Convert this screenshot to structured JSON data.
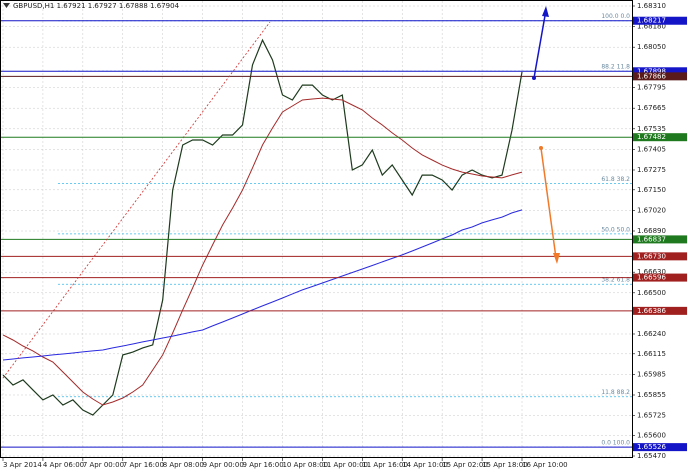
{
  "chart_data": {
    "type": "line",
    "title": "GBPUSD,H1  1.67921 1.67927 1.67888 1.67904",
    "categories": [
      "3 Apr 2014",
      null,
      null,
      null,
      "4 Apr 06:00",
      null,
      null,
      null,
      "7 Apr 00:00",
      null,
      null,
      null,
      "7 Apr 16:00",
      null,
      null,
      null,
      "8 Apr 08:00",
      null,
      null,
      null,
      "9 Apr 00:00",
      null,
      null,
      null,
      "9 Apr 16:00",
      null,
      null,
      null,
      "10 Apr 08:00",
      null,
      null,
      null,
      "11 Apr 00:00",
      null,
      null,
      null,
      "11 Apr 16:00",
      null,
      null,
      null,
      "14 Apr 10:00",
      null,
      null,
      null,
      "15 Apr 02:00",
      null,
      null,
      null,
      "15 Apr 18:00",
      null,
      null,
      null,
      "16 Apr 10:00"
    ],
    "series": [
      {
        "color": "#1e3a1e",
        "values": [
          1.65981,
          1.65918,
          1.6595,
          1.65887,
          1.65824,
          1.65855,
          1.65792,
          1.65824,
          1.6576,
          1.65729,
          1.65792,
          1.65855,
          1.66108,
          1.66126,
          1.66152,
          1.66171,
          1.66455,
          1.67149,
          1.67433,
          1.67464,
          1.67464,
          1.67433,
          1.67496,
          1.67496,
          1.67559,
          1.67938,
          1.68095,
          1.67969,
          1.67748,
          1.67717,
          1.67811,
          1.67811,
          1.67748,
          1.67717,
          1.67748,
          1.67275,
          1.67307,
          1.67401,
          1.67243,
          1.67307,
          1.67212,
          1.67117,
          1.67243,
          1.67243,
          1.67212,
          1.67149,
          1.67243,
          1.67275,
          1.67243,
          1.67225,
          1.67243,
          1.67527,
          1.67894
        ]
      },
      {
        "color": "#a52a2a",
        "values": [
          1.66234,
          1.66202,
          1.66164,
          1.66133,
          1.66095,
          1.66063,
          1.66,
          1.65937,
          1.65874,
          1.6583,
          1.65792,
          1.65811,
          1.65836,
          1.65874,
          1.65918,
          1.66013,
          1.66108,
          1.66246,
          1.66392,
          1.6653,
          1.66675,
          1.66802,
          1.66928,
          1.67035,
          1.67149,
          1.67288,
          1.67433,
          1.6754,
          1.67641,
          1.67679,
          1.67717,
          1.67723,
          1.67729,
          1.67723,
          1.67717,
          1.67685,
          1.67654,
          1.67603,
          1.67559,
          1.67509,
          1.67464,
          1.67414,
          1.6737,
          1.67338,
          1.67306,
          1.67281,
          1.67262,
          1.6725,
          1.67237,
          1.67231,
          1.67225,
          1.67244,
          1.67262
        ]
      },
      {
        "color": "#2a2ae0",
        "values": [
          1.66076,
          1.66082,
          1.66089,
          1.66095,
          1.66101,
          1.66108,
          1.66114,
          1.6612,
          1.66127,
          1.66133,
          1.66139,
          1.66152,
          1.66164,
          1.66177,
          1.6619,
          1.66202,
          1.66215,
          1.66227,
          1.6624,
          1.66253,
          1.66265,
          1.66291,
          1.66316,
          1.66341,
          1.66366,
          1.66392,
          1.66417,
          1.66442,
          1.66467,
          1.66493,
          1.66518,
          1.6654,
          1.66562,
          1.66584,
          1.66606,
          1.66628,
          1.6665,
          1.66672,
          1.66695,
          1.66717,
          1.66739,
          1.66764,
          1.66789,
          1.66814,
          1.6684,
          1.66865,
          1.66896,
          1.66915,
          1.66941,
          1.6696,
          1.66978,
          1.67004,
          1.67023
        ]
      }
    ],
    "ylim": [
      1.6547,
      1.6831
    ],
    "yticks": [
      {
        "value": 1.6831,
        "label": "1.68310"
      },
      {
        "value": 1.6818,
        "label": "1.68180"
      },
      {
        "value": 1.6805,
        "label": "1.68050"
      },
      {
        "value": 1.67795,
        "label": "1.67795"
      },
      {
        "value": 1.67665,
        "label": "1.67665"
      },
      {
        "value": 1.67535,
        "label": "1.67535"
      },
      {
        "value": 1.67405,
        "label": "1.67405"
      },
      {
        "value": 1.67275,
        "label": "1.67275"
      },
      {
        "value": 1.6715,
        "label": "1.67150"
      },
      {
        "value": 1.6702,
        "label": "1.67020"
      },
      {
        "value": 1.6689,
        "label": "1.66890"
      },
      {
        "value": 1.6663,
        "label": "1.66630"
      },
      {
        "value": 1.665,
        "label": "1.66500"
      },
      {
        "value": 1.6624,
        "label": "1.66240"
      },
      {
        "value": 1.66115,
        "label": "1.66115"
      },
      {
        "value": 1.65985,
        "label": "1.65985"
      },
      {
        "value": 1.65855,
        "label": "1.65855"
      },
      {
        "value": 1.65725,
        "label": "1.65725"
      },
      {
        "value": 1.656,
        "label": "1.65600"
      },
      {
        "value": 1.6547,
        "label": "1.65470"
      }
    ],
    "grid": true,
    "levels": [
      {
        "value": 1.68217,
        "label": "1.68217",
        "color": "#1515c8"
      },
      {
        "value": 1.67898,
        "label": "1.67898",
        "color": "#1515c8"
      },
      {
        "value": 1.67866,
        "label": "1.67866",
        "color": "#5a1a1a"
      },
      {
        "value": 1.67482,
        "label": "1.67482",
        "color": "#1f7a1f"
      },
      {
        "value": 1.66837,
        "label": "1.66837",
        "color": "#1f7a1f"
      },
      {
        "value": 1.6673,
        "label": "1.66730",
        "color": "#a02020"
      },
      {
        "value": 1.66596,
        "label": "1.66596",
        "color": "#a02020"
      },
      {
        "value": 1.66386,
        "label": "1.66386",
        "color": "#a02020"
      },
      {
        "value": 1.65526,
        "label": "1.65526",
        "color": "#1515c8"
      }
    ],
    "fib_levels": [
      {
        "value": 1.68217,
        "label": "100.0 0.0"
      },
      {
        "value": 1.67899,
        "label": "88.2 11.8"
      },
      {
        "value": 1.67189,
        "label": "61.8 38.2"
      },
      {
        "value": 1.66872,
        "label": "50.0 50.0"
      },
      {
        "value": 1.66554,
        "label": "38.2 61.8"
      },
      {
        "value": 1.65844,
        "label": "11.8 88.2"
      },
      {
        "value": 1.65526,
        "label": "0.0 100.0"
      }
    ],
    "fib_color": "#33bbee"
  }
}
